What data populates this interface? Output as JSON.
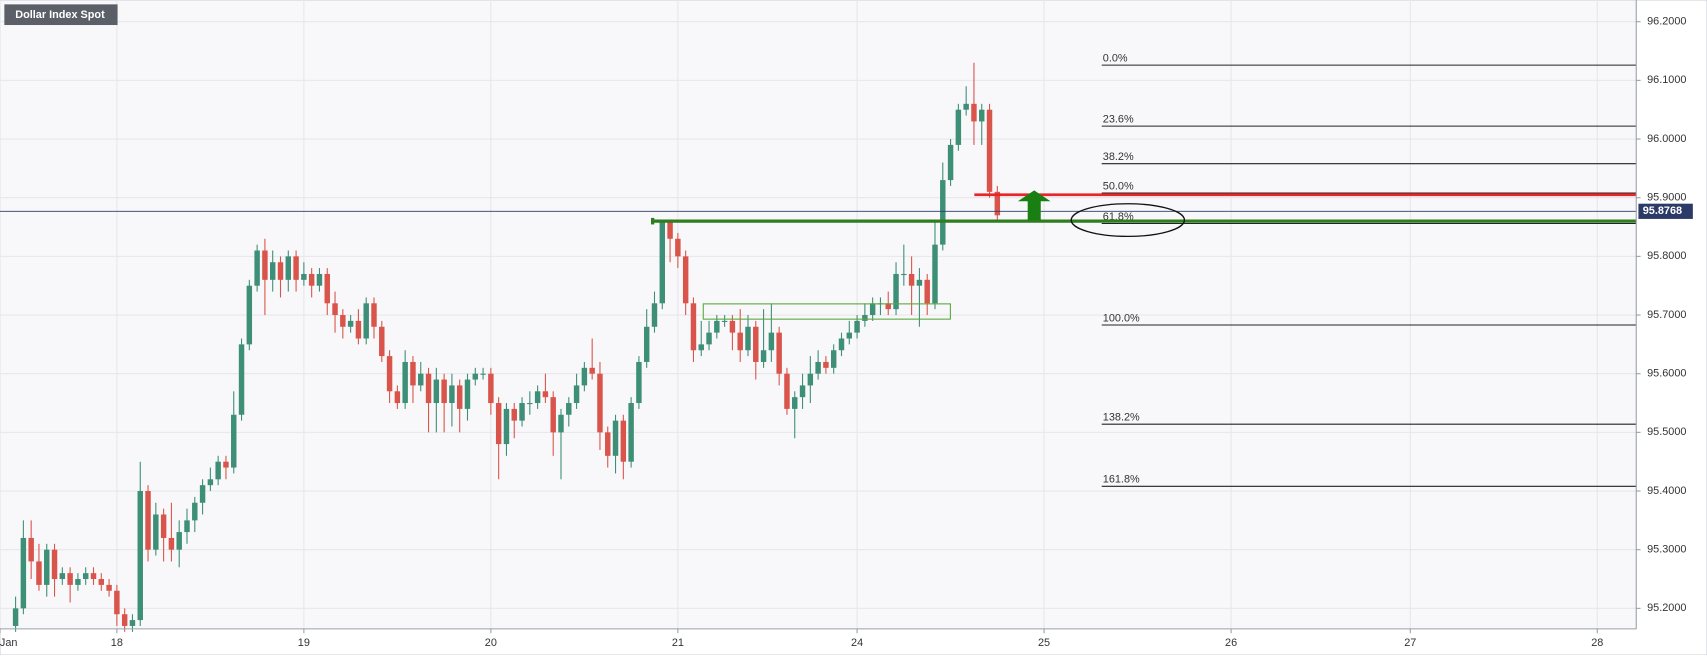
{
  "chart_data": {
    "type": "candlestick",
    "title": "Dollar Index Spot",
    "up_color": "#3d8f77",
    "down_color": "#d9544a",
    "grid": true,
    "xlim": [
      0,
      210
    ],
    "ylim": [
      95.165,
      96.237
    ],
    "xticks": [
      {
        "value": 0,
        "label": "Jan"
      },
      {
        "value": 15,
        "label": "18"
      },
      {
        "value": 39,
        "label": "19"
      },
      {
        "value": 63,
        "label": "20"
      },
      {
        "value": 87,
        "label": "21"
      },
      {
        "value": 110,
        "label": "24"
      },
      {
        "value": 134,
        "label": "25"
      },
      {
        "value": 158,
        "label": "26"
      },
      {
        "value": 181,
        "label": "27"
      },
      {
        "value": 205,
        "label": "28"
      }
    ],
    "yticks": [
      {
        "value": 95.2,
        "label": "95.2000"
      },
      {
        "value": 95.3,
        "label": "95.3000"
      },
      {
        "value": 95.4,
        "label": "95.4000"
      },
      {
        "value": 95.5,
        "label": "95.5000"
      },
      {
        "value": 95.6,
        "label": "95.6000"
      },
      {
        "value": 95.7,
        "label": "95.7000"
      },
      {
        "value": 95.8,
        "label": "95.8000"
      },
      {
        "value": 95.9,
        "label": "95.9000"
      },
      {
        "value": 96.0,
        "label": "96.0000"
      },
      {
        "value": 96.1,
        "label": "96.1000"
      },
      {
        "value": 96.2,
        "label": "96.2000"
      }
    ],
    "x": [
      2,
      3,
      4,
      5,
      6,
      7,
      8,
      9,
      10,
      11,
      12,
      13,
      14,
      15,
      16,
      17,
      18,
      19,
      20,
      21,
      22,
      23,
      24,
      25,
      26,
      27,
      28,
      29,
      30,
      31,
      32,
      33,
      34,
      35,
      36,
      37,
      38,
      39,
      40,
      41,
      42,
      43,
      44,
      45,
      46,
      47,
      48,
      49,
      50,
      51,
      52,
      53,
      54,
      55,
      56,
      57,
      58,
      59,
      60,
      61,
      62,
      63,
      64,
      65,
      66,
      67,
      68,
      69,
      70,
      71,
      72,
      73,
      74,
      75,
      76,
      77,
      78,
      79,
      80,
      81,
      82,
      83,
      84,
      85,
      86,
      87,
      88,
      89,
      90,
      91,
      92,
      93,
      94,
      95,
      96,
      97,
      98,
      99,
      100,
      101,
      102,
      103,
      104,
      105,
      106,
      107,
      108,
      109,
      110,
      111,
      112,
      113,
      114,
      115,
      116,
      117,
      118,
      119,
      120,
      121,
      122,
      123,
      124,
      125,
      126,
      127,
      128
    ],
    "open": [
      95.17,
      95.2,
      95.32,
      95.28,
      95.24,
      95.3,
      95.25,
      95.26,
      95.24,
      95.25,
      95.26,
      95.25,
      95.24,
      95.23,
      95.19,
      95.17,
      95.18,
      95.4,
      95.3,
      95.36,
      95.32,
      95.3,
      95.33,
      95.35,
      95.38,
      95.41,
      95.42,
      95.45,
      95.44,
      95.53,
      95.65,
      95.75,
      95.81,
      95.76,
      95.79,
      95.76,
      95.8,
      95.76,
      95.77,
      95.75,
      95.77,
      95.72,
      95.7,
      95.68,
      95.69,
      95.66,
      95.72,
      95.68,
      95.63,
      95.57,
      95.55,
      95.62,
      95.58,
      95.6,
      95.55,
      95.59,
      95.55,
      95.58,
      95.54,
      95.59,
      95.6,
      95.6,
      95.55,
      95.48,
      95.54,
      95.52,
      95.55,
      95.55,
      95.57,
      95.56,
      95.5,
      95.53,
      95.55,
      95.58,
      95.61,
      95.6,
      95.5,
      95.46,
      95.52,
      95.45,
      95.55,
      95.62,
      95.68,
      95.72,
      95.86,
      95.83,
      95.8,
      95.72,
      95.64,
      95.65,
      95.67,
      95.69,
      95.69,
      95.67,
      95.64,
      95.68,
      95.62,
      95.64,
      95.67,
      95.6,
      95.54,
      95.56,
      95.58,
      95.6,
      95.62,
      95.61,
      95.64,
      95.66,
      95.67,
      95.69,
      95.7,
      95.72,
      95.72,
      95.71,
      95.77,
      95.77,
      95.75,
      95.76,
      95.72,
      95.82,
      95.93,
      95.99,
      96.05,
      96.06,
      96.03,
      96.05,
      95.91
    ],
    "high": [
      95.22,
      95.35,
      95.35,
      95.31,
      95.31,
      95.31,
      95.27,
      95.27,
      95.26,
      95.27,
      95.27,
      95.26,
      95.25,
      95.24,
      95.2,
      95.19,
      95.45,
      95.41,
      95.38,
      95.37,
      95.38,
      95.35,
      95.37,
      95.39,
      95.42,
      95.44,
      95.46,
      95.46,
      95.57,
      95.66,
      95.76,
      95.82,
      95.83,
      95.81,
      95.8,
      95.81,
      95.81,
      95.79,
      95.78,
      95.78,
      95.78,
      95.74,
      95.71,
      95.7,
      95.71,
      95.73,
      95.73,
      95.69,
      95.64,
      95.58,
      95.64,
      95.63,
      95.62,
      95.61,
      95.61,
      95.6,
      95.6,
      95.59,
      95.6,
      95.61,
      95.61,
      95.61,
      95.56,
      95.55,
      95.55,
      95.56,
      95.57,
      95.58,
      95.6,
      95.57,
      95.54,
      95.56,
      95.6,
      95.62,
      95.66,
      95.62,
      95.51,
      95.53,
      95.53,
      95.56,
      95.63,
      95.71,
      95.74,
      95.86,
      95.86,
      95.84,
      95.81,
      95.73,
      95.69,
      95.69,
      95.7,
      95.7,
      95.7,
      95.71,
      95.7,
      95.69,
      95.71,
      95.72,
      95.68,
      95.61,
      95.57,
      95.6,
      95.63,
      95.64,
      95.63,
      95.65,
      95.67,
      95.69,
      95.7,
      95.72,
      95.73,
      95.73,
      95.74,
      95.79,
      95.82,
      95.8,
      95.78,
      95.77,
      95.86,
      95.96,
      96.0,
      96.06,
      96.09,
      96.13,
      96.06,
      96.06,
      95.92
    ],
    "low": [
      95.16,
      95.19,
      95.25,
      95.23,
      95.22,
      95.22,
      95.24,
      95.21,
      95.23,
      95.24,
      95.24,
      95.23,
      95.22,
      95.17,
      95.16,
      95.16,
      95.17,
      95.28,
      95.29,
      95.28,
      95.28,
      95.27,
      95.31,
      95.33,
      95.36,
      95.4,
      95.41,
      95.42,
      95.43,
      95.52,
      95.64,
      95.74,
      95.7,
      95.74,
      95.73,
      95.74,
      95.74,
      95.75,
      95.73,
      95.74,
      95.7,
      95.67,
      95.66,
      95.67,
      95.65,
      95.65,
      95.66,
      95.62,
      95.55,
      95.54,
      95.54,
      95.55,
      95.57,
      95.5,
      95.5,
      95.5,
      95.51,
      95.5,
      95.52,
      95.58,
      95.59,
      95.53,
      95.42,
      95.46,
      95.49,
      95.51,
      95.53,
      95.54,
      95.55,
      95.46,
      95.42,
      95.51,
      95.54,
      95.57,
      95.59,
      95.47,
      95.44,
      95.43,
      95.42,
      95.44,
      95.54,
      95.61,
      95.67,
      95.71,
      95.79,
      95.78,
      95.7,
      95.62,
      95.63,
      95.64,
      95.66,
      95.68,
      95.64,
      95.62,
      95.63,
      95.59,
      95.61,
      95.62,
      95.58,
      95.53,
      95.49,
      95.54,
      95.55,
      95.59,
      95.6,
      95.6,
      95.63,
      95.65,
      95.66,
      95.68,
      95.69,
      95.7,
      95.7,
      95.7,
      95.75,
      95.7,
      95.68,
      95.7,
      95.71,
      95.81,
      95.92,
      95.98,
      96.04,
      95.99,
      95.99,
      95.9,
      95.86
    ],
    "close": [
      95.2,
      95.32,
      95.28,
      95.24,
      95.3,
      95.25,
      95.26,
      95.24,
      95.25,
      95.26,
      95.25,
      95.24,
      95.23,
      95.19,
      95.17,
      95.18,
      95.4,
      95.3,
      95.36,
      95.32,
      95.3,
      95.33,
      95.35,
      95.38,
      95.41,
      95.42,
      95.45,
      95.44,
      95.53,
      95.65,
      95.75,
      95.81,
      95.76,
      95.79,
      95.76,
      95.8,
      95.76,
      95.77,
      95.75,
      95.77,
      95.72,
      95.7,
      95.68,
      95.69,
      95.66,
      95.72,
      95.68,
      95.63,
      95.57,
      95.55,
      95.62,
      95.58,
      95.6,
      95.55,
      95.59,
      95.55,
      95.58,
      95.54,
      95.59,
      95.6,
      95.6,
      95.55,
      95.48,
      95.54,
      95.52,
      95.55,
      95.55,
      95.57,
      95.56,
      95.5,
      95.53,
      95.55,
      95.58,
      95.61,
      95.6,
      95.5,
      95.46,
      95.52,
      95.45,
      95.55,
      95.62,
      95.68,
      95.72,
      95.86,
      95.83,
      95.8,
      95.72,
      95.64,
      95.65,
      95.67,
      95.69,
      95.69,
      95.67,
      95.64,
      95.68,
      95.62,
      95.64,
      95.67,
      95.6,
      95.54,
      95.56,
      95.58,
      95.6,
      95.62,
      95.61,
      95.64,
      95.66,
      95.67,
      95.69,
      95.7,
      95.72,
      95.72,
      95.71,
      95.77,
      95.77,
      95.75,
      95.76,
      95.72,
      95.82,
      95.93,
      95.99,
      96.05,
      96.06,
      96.03,
      96.05,
      95.91,
      95.87
    ],
    "last_price": 95.8768,
    "fib_levels": [
      {
        "label": "0.0%",
        "value": 96.126
      },
      {
        "label": "23.6%",
        "value": 96.022
      },
      {
        "label": "38.2%",
        "value": 95.958
      },
      {
        "label": "50.0%",
        "value": 95.908
      },
      {
        "label": "61.8%",
        "value": 95.856
      },
      {
        "label": "100.0%",
        "value": 95.683
      },
      {
        "label": "138.2%",
        "value": 95.514
      },
      {
        "label": "161.8%",
        "value": 95.408
      }
    ],
    "resistance_line": {
      "value": 95.905,
      "color": "#e8262a"
    },
    "support_line": {
      "value": 95.86,
      "color": "#2e7d1f"
    },
    "range_box": {
      "low": 95.693,
      "high": 95.719,
      "color": "#5aa83c"
    }
  }
}
